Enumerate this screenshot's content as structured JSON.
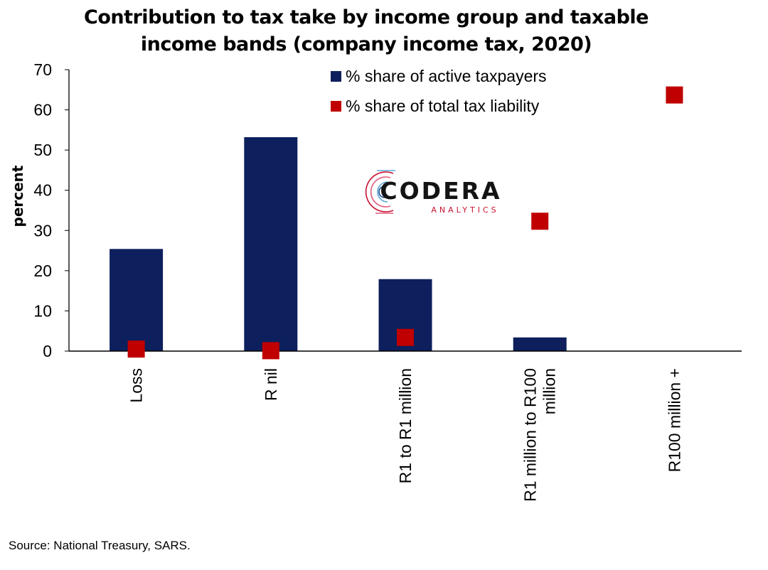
{
  "chart_data": {
    "type": "bar",
    "title": "Contribution to tax take by income group and taxable income bands (company income tax, 2020)",
    "title_lines": [
      "Contribution to tax take by income group and taxable",
      "income bands (company income tax, 2020)"
    ],
    "ylabel": "percent",
    "xlabel": "",
    "ylim": [
      0,
      70
    ],
    "yticks": [
      0,
      10,
      20,
      30,
      40,
      50,
      60,
      70
    ],
    "categories": [
      "Loss",
      "R nil",
      "R1 to R1 million",
      "R1 million to R100 million",
      "R100 million +"
    ],
    "category_label_lines": [
      [
        "Loss"
      ],
      [
        "R nil"
      ],
      [
        "R1 to R1 million"
      ],
      [
        "R1 million to R100",
        "million"
      ],
      [
        "R100 million +"
      ]
    ],
    "series": [
      {
        "name": "% share of active taxpayers",
        "kind": "bar",
        "color": "#0d1f5c",
        "values": [
          25.4,
          53.2,
          17.9,
          3.4,
          0.0
        ]
      },
      {
        "name": "% share of total tax liability",
        "kind": "marker",
        "color": "#c00000",
        "values": [
          0.5,
          0.1,
          3.4,
          32.3,
          63.7
        ]
      }
    ],
    "legend_position": "top-right",
    "grid": false
  },
  "watermark": {
    "brand": "CODERA",
    "sub": "ANALYTICS"
  },
  "source": "Source: National Treasury, SARS."
}
